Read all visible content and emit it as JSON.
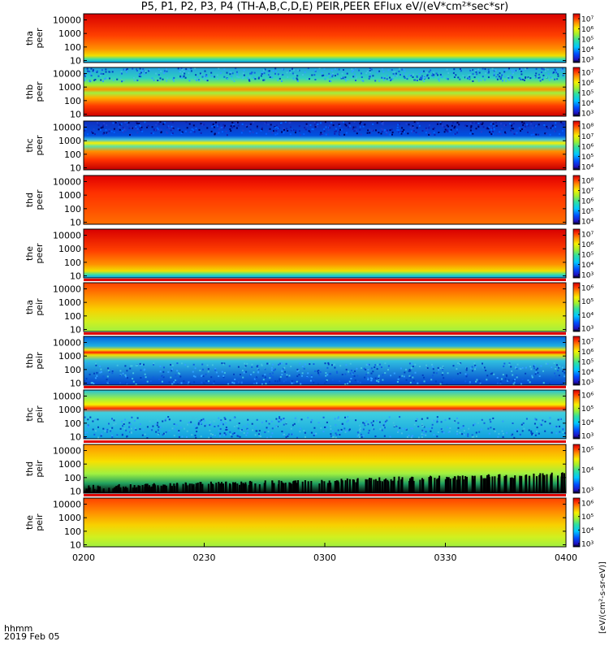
{
  "title": "P5, P1, P2, P3, P4 (TH-A,B,C,D,E) PEIR,PEER EFlux eV/(eV*cm²*sec*sr)",
  "footer": {
    "time_label": "hhmm",
    "date_label": "2019 Feb 05"
  },
  "colorbar_unit_label": "[eV/(cm²-s-sr-eV)]",
  "chart_data": {
    "type": "heatmap",
    "x_ticks": [
      "0200",
      "0230",
      "0300",
      "0330",
      "0400"
    ],
    "y_scale": "log",
    "y_ticks": [
      "10",
      "100",
      "1000",
      "10000"
    ],
    "panels": [
      {
        "line1": "tha",
        "line2": "peer",
        "cbar_ticks": [
          "10⁷",
          "10⁶",
          "10⁵",
          "10⁴",
          "10³"
        ],
        "style": "red-top"
      },
      {
        "line1": "thb",
        "line2": "peer",
        "cbar_ticks": [
          "10⁷",
          "10⁶",
          "10⁵",
          "10⁴",
          "10³"
        ],
        "style": "band"
      },
      {
        "line1": "thc",
        "line2": "peer",
        "cbar_ticks": [
          "10⁸",
          "10⁷",
          "10⁶",
          "10⁵",
          "10⁴"
        ],
        "style": "band-dark"
      },
      {
        "line1": "thd",
        "line2": "peer",
        "cbar_ticks": [
          "10⁸",
          "10⁷",
          "10⁶",
          "10⁵",
          "10⁴"
        ],
        "style": "red-full"
      },
      {
        "line1": "the",
        "line2": "peer",
        "cbar_ticks": [
          "10⁷",
          "10⁶",
          "10⁵",
          "10⁴",
          "10³"
        ],
        "style": "red-top"
      },
      {
        "line1": "tha",
        "line2": "peir",
        "cbar_ticks": [
          "10⁶",
          "10⁵",
          "10⁴",
          "10³"
        ],
        "style": "ion"
      },
      {
        "line1": "thb",
        "line2": "peir",
        "cbar_ticks": [
          "10⁷",
          "10⁶",
          "10⁵",
          "10⁴",
          "10³"
        ],
        "style": "ion-band"
      },
      {
        "line1": "thc",
        "line2": "peir",
        "cbar_ticks": [
          "10⁶",
          "10⁵",
          "10⁴",
          "10³"
        ],
        "style": "ion-band2"
      },
      {
        "line1": "thd",
        "line2": "peir",
        "cbar_ticks": [
          "10⁵",
          "10⁴",
          "10³"
        ],
        "style": "ion-dark"
      },
      {
        "line1": "the",
        "line2": "peir",
        "cbar_ticks": [
          "10⁶",
          "10⁵",
          "10⁴",
          "10³"
        ],
        "style": "ion"
      }
    ]
  }
}
